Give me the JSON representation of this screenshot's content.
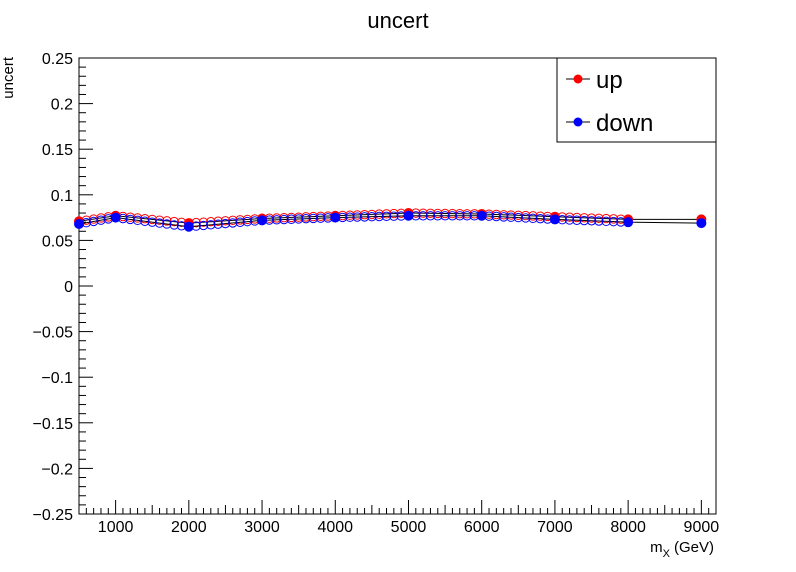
{
  "chart_data": {
    "type": "line",
    "title": "uncert",
    "xlabel_main": "m",
    "xlabel_sub": "X",
    "xlabel_unit": "(GeV)",
    "ylabel": "uncert",
    "xlim": [
      500,
      9200
    ],
    "ylim": [
      -0.25,
      0.25
    ],
    "x_ticks": [
      1000,
      2000,
      3000,
      4000,
      5000,
      6000,
      7000,
      8000,
      9000
    ],
    "y_ticks": [
      "0.25",
      "0.2",
      "0.15",
      "0.1",
      "0.05",
      "0",
      "−0.05",
      "−0.1",
      "−0.15",
      "−0.2",
      "−0.25"
    ],
    "y_tick_values": [
      0.25,
      0.2,
      0.15,
      0.1,
      0.05,
      0,
      -0.05,
      -0.1,
      -0.15,
      -0.2,
      -0.25
    ],
    "legend_position": "top-right",
    "series": [
      {
        "name": "up",
        "color": "#ff0000",
        "line_color": "#000000",
        "x": [
          500,
          1000,
          2000,
          3000,
          4000,
          5000,
          6000,
          7000,
          8000,
          9000
        ],
        "y": [
          0.071,
          0.077,
          0.069,
          0.074,
          0.077,
          0.08,
          0.079,
          0.076,
          0.073,
          0.073
        ]
      },
      {
        "name": "down",
        "color": "#0000ff",
        "line_color": "#000000",
        "x": [
          500,
          1000,
          2000,
          3000,
          4000,
          5000,
          6000,
          7000,
          8000,
          9000
        ],
        "y": [
          0.068,
          0.075,
          0.065,
          0.072,
          0.075,
          0.077,
          0.077,
          0.073,
          0.07,
          0.069
        ]
      }
    ],
    "interpolated_markers": {
      "step": 100,
      "up_color": "#ff0000",
      "down_color": "#0000ff"
    }
  }
}
